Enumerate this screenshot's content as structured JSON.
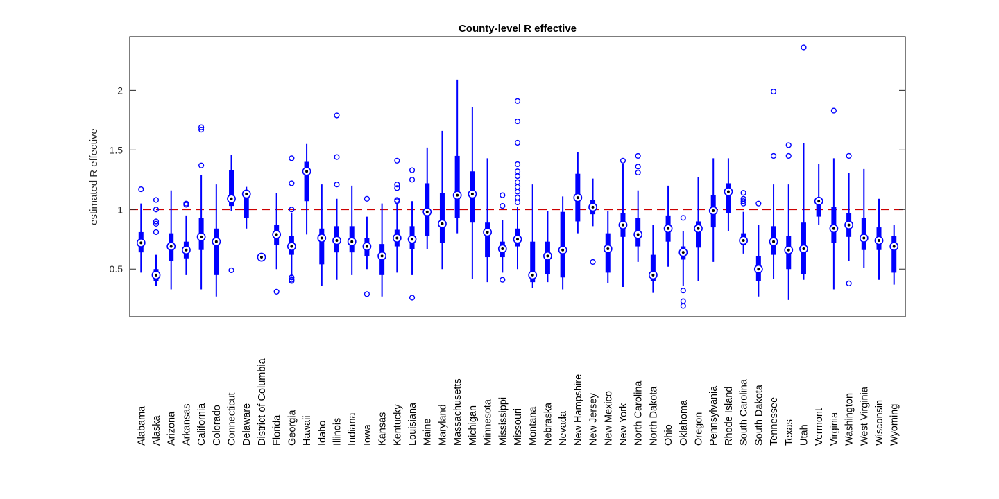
{
  "chart_data": {
    "type": "boxplot",
    "title": "County-level R effective",
    "xlabel": "",
    "ylabel": "estimated R effective",
    "ylim": [
      0.1,
      2.45
    ],
    "yticks": [
      0.5,
      1,
      1.5,
      2
    ],
    "ytick_labels": [
      "0.5",
      "1",
      "1.5",
      "2"
    ],
    "reference_line": {
      "y": 1,
      "style": "dashed",
      "color": "#cc0000"
    },
    "colors": {
      "box": "#0000ff",
      "outlier": "#0000ff",
      "median_marker": "#000000",
      "reference": "#cc0000",
      "axes": "#262626"
    },
    "grid": false,
    "categories": [
      "Alabama",
      "Alaska",
      "Arizona",
      "Arkansas",
      "California",
      "Colorado",
      "Connecticut",
      "Delaware",
      "District of Columbia",
      "Florida",
      "Georgia",
      "Hawaii",
      "Idaho",
      "Illinois",
      "Indiana",
      "Iowa",
      "Kansas",
      "Kentucky",
      "Louisiana",
      "Maine",
      "Maryland",
      "Massachusetts",
      "Michigan",
      "Minnesota",
      "Mississippi",
      "Missouri",
      "Montana",
      "Nebraska",
      "Nevada",
      "New Hampshire",
      "New Jersey",
      "New Mexico",
      "New York",
      "North Carolina",
      "North Dakota",
      "Ohio",
      "Oklahoma",
      "Oregon",
      "Pennsylvania",
      "Rhode Island",
      "South Carolina",
      "South Dakota",
      "Tennessee",
      "Texas",
      "Utah",
      "Vermont",
      "Virginia",
      "Washington",
      "West Virginia",
      "Wisconsin",
      "Wyoming"
    ],
    "boxes": [
      {
        "whisker_low": 0.47,
        "q1": 0.64,
        "median": 0.72,
        "q3": 0.81,
        "whisker_high": 1.05,
        "outliers": [
          1.17
        ]
      },
      {
        "whisker_low": 0.36,
        "q1": 0.4,
        "median": 0.45,
        "q3": 0.5,
        "whisker_high": 0.62,
        "outliers": [
          0.81,
          0.88,
          0.9,
          1.0,
          1.08
        ]
      },
      {
        "whisker_low": 0.33,
        "q1": 0.57,
        "median": 0.69,
        "q3": 0.8,
        "whisker_high": 1.16,
        "outliers": []
      },
      {
        "whisker_low": 0.45,
        "q1": 0.59,
        "median": 0.66,
        "q3": 0.73,
        "whisker_high": 0.95,
        "outliers": [
          1.04,
          1.05
        ]
      },
      {
        "whisker_low": 0.33,
        "q1": 0.66,
        "median": 0.77,
        "q3": 0.93,
        "whisker_high": 1.29,
        "outliers": [
          1.37,
          1.67,
          1.69
        ]
      },
      {
        "whisker_low": 0.27,
        "q1": 0.45,
        "median": 0.73,
        "q3": 0.84,
        "whisker_high": 1.21,
        "outliers": []
      },
      {
        "whisker_low": 0.99,
        "q1": 1.03,
        "median": 1.09,
        "q3": 1.33,
        "whisker_high": 1.46,
        "outliers": [
          0.49
        ]
      },
      {
        "whisker_low": 0.84,
        "q1": 0.93,
        "median": 1.13,
        "q3": 1.16,
        "whisker_high": 1.19,
        "outliers": []
      },
      {
        "whisker_low": 0.6,
        "q1": 0.6,
        "median": 0.6,
        "q3": 0.6,
        "whisker_high": 0.6,
        "outliers": []
      },
      {
        "whisker_low": 0.5,
        "q1": 0.7,
        "median": 0.79,
        "q3": 0.87,
        "whisker_high": 1.14,
        "outliers": [
          0.31
        ]
      },
      {
        "whisker_low": 0.44,
        "q1": 0.62,
        "median": 0.69,
        "q3": 0.78,
        "whisker_high": 0.97,
        "outliers": [
          0.4,
          0.41,
          0.43,
          1.0,
          1.22,
          1.43
        ]
      },
      {
        "whisker_low": 0.79,
        "q1": 1.07,
        "median": 1.32,
        "q3": 1.4,
        "whisker_high": 1.55,
        "outliers": []
      },
      {
        "whisker_low": 0.36,
        "q1": 0.54,
        "median": 0.76,
        "q3": 0.84,
        "whisker_high": 1.21,
        "outliers": []
      },
      {
        "whisker_low": 0.41,
        "q1": 0.64,
        "median": 0.74,
        "q3": 0.86,
        "whisker_high": 1.09,
        "outliers": [
          1.21,
          1.44,
          1.79
        ]
      },
      {
        "whisker_low": 0.45,
        "q1": 0.64,
        "median": 0.73,
        "q3": 0.86,
        "whisker_high": 1.2,
        "outliers": []
      },
      {
        "whisker_low": 0.5,
        "q1": 0.61,
        "median": 0.69,
        "q3": 0.76,
        "whisker_high": 0.94,
        "outliers": [
          0.29,
          1.09
        ]
      },
      {
        "whisker_low": 0.27,
        "q1": 0.45,
        "median": 0.61,
        "q3": 0.71,
        "whisker_high": 1.05,
        "outliers": []
      },
      {
        "whisker_low": 0.47,
        "q1": 0.69,
        "median": 0.76,
        "q3": 0.83,
        "whisker_high": 1.05,
        "outliers": [
          1.07,
          1.08,
          1.18,
          1.21,
          1.41
        ]
      },
      {
        "whisker_low": 0.45,
        "q1": 0.67,
        "median": 0.75,
        "q3": 0.86,
        "whisker_high": 1.07,
        "outliers": [
          0.26,
          1.25,
          1.33
        ]
      },
      {
        "whisker_low": 0.67,
        "q1": 0.78,
        "median": 0.98,
        "q3": 1.22,
        "whisker_high": 1.52,
        "outliers": []
      },
      {
        "whisker_low": 0.5,
        "q1": 0.72,
        "median": 0.88,
        "q3": 1.14,
        "whisker_high": 1.66,
        "outliers": []
      },
      {
        "whisker_low": 0.8,
        "q1": 0.93,
        "median": 1.12,
        "q3": 1.45,
        "whisker_high": 2.09,
        "outliers": []
      },
      {
        "whisker_low": 0.42,
        "q1": 0.89,
        "median": 1.13,
        "q3": 1.32,
        "whisker_high": 1.86,
        "outliers": []
      },
      {
        "whisker_low": 0.39,
        "q1": 0.6,
        "median": 0.81,
        "q3": 0.89,
        "whisker_high": 1.43,
        "outliers": []
      },
      {
        "whisker_low": 0.47,
        "q1": 0.6,
        "median": 0.67,
        "q3": 0.73,
        "whisker_high": 0.91,
        "outliers": [
          0.41,
          1.03,
          1.12
        ]
      },
      {
        "whisker_low": 0.5,
        "q1": 0.69,
        "median": 0.75,
        "q3": 0.84,
        "whisker_high": 1.02,
        "outliers": [
          1.06,
          1.1,
          1.15,
          1.19,
          1.23,
          1.28,
          1.32,
          1.38,
          1.56,
          1.74,
          1.91
        ]
      },
      {
        "whisker_low": 0.34,
        "q1": 0.39,
        "median": 0.45,
        "q3": 0.73,
        "whisker_high": 1.21,
        "outliers": []
      },
      {
        "whisker_low": 0.39,
        "q1": 0.46,
        "median": 0.61,
        "q3": 0.73,
        "whisker_high": 0.99,
        "outliers": []
      },
      {
        "whisker_low": 0.33,
        "q1": 0.43,
        "median": 0.66,
        "q3": 0.98,
        "whisker_high": 1.11,
        "outliers": []
      },
      {
        "whisker_low": 0.8,
        "q1": 0.9,
        "median": 1.1,
        "q3": 1.3,
        "whisker_high": 1.48,
        "outliers": []
      },
      {
        "whisker_low": 0.86,
        "q1": 0.96,
        "median": 1.02,
        "q3": 1.08,
        "whisker_high": 1.26,
        "outliers": [
          0.56
        ]
      },
      {
        "whisker_low": 0.38,
        "q1": 0.47,
        "median": 0.67,
        "q3": 0.8,
        "whisker_high": 0.99,
        "outliers": []
      },
      {
        "whisker_low": 0.35,
        "q1": 0.77,
        "median": 0.87,
        "q3": 0.97,
        "whisker_high": 1.38,
        "outliers": [
          1.41
        ]
      },
      {
        "whisker_low": 0.56,
        "q1": 0.69,
        "median": 0.79,
        "q3": 0.93,
        "whisker_high": 1.16,
        "outliers": [
          1.31,
          1.36,
          1.45
        ]
      },
      {
        "whisker_low": 0.3,
        "q1": 0.4,
        "median": 0.45,
        "q3": 0.62,
        "whisker_high": 0.87,
        "outliers": []
      },
      {
        "whisker_low": 0.52,
        "q1": 0.73,
        "median": 0.84,
        "q3": 0.95,
        "whisker_high": 1.2,
        "outliers": []
      },
      {
        "whisker_low": 0.36,
        "q1": 0.58,
        "median": 0.64,
        "q3": 0.69,
        "whisker_high": 0.82,
        "outliers": [
          0.19,
          0.23,
          0.32,
          0.93
        ]
      },
      {
        "whisker_low": 0.4,
        "q1": 0.68,
        "median": 0.84,
        "q3": 0.9,
        "whisker_high": 1.27,
        "outliers": []
      },
      {
        "whisker_low": 0.56,
        "q1": 0.85,
        "median": 0.99,
        "q3": 1.12,
        "whisker_high": 1.43,
        "outliers": []
      },
      {
        "whisker_low": 0.82,
        "q1": 0.97,
        "median": 1.15,
        "q3": 1.22,
        "whisker_high": 1.43,
        "outliers": []
      },
      {
        "whisker_low": 0.63,
        "q1": 0.7,
        "median": 0.74,
        "q3": 0.8,
        "whisker_high": 0.98,
        "outliers": [
          1.05,
          1.07,
          1.09,
          1.14
        ]
      },
      {
        "whisker_low": 0.27,
        "q1": 0.4,
        "median": 0.5,
        "q3": 0.61,
        "whisker_high": 0.87,
        "outliers": [
          1.05
        ]
      },
      {
        "whisker_low": 0.42,
        "q1": 0.62,
        "median": 0.73,
        "q3": 0.86,
        "whisker_high": 1.21,
        "outliers": [
          1.45,
          1.99
        ]
      },
      {
        "whisker_low": 0.24,
        "q1": 0.5,
        "median": 0.66,
        "q3": 0.78,
        "whisker_high": 1.21,
        "outliers": [
          1.45,
          1.54
        ]
      },
      {
        "whisker_low": 0.41,
        "q1": 0.46,
        "median": 0.67,
        "q3": 0.89,
        "whisker_high": 1.56,
        "outliers": [
          2.36
        ]
      },
      {
        "whisker_low": 0.87,
        "q1": 0.94,
        "median": 1.07,
        "q3": 1.1,
        "whisker_high": 1.38,
        "outliers": []
      },
      {
        "whisker_low": 0.33,
        "q1": 0.72,
        "median": 0.84,
        "q3": 1.02,
        "whisker_high": 1.43,
        "outliers": [
          1.83
        ]
      },
      {
        "whisker_low": 0.57,
        "q1": 0.77,
        "median": 0.87,
        "q3": 0.97,
        "whisker_high": 1.31,
        "outliers": [
          0.38,
          1.45
        ]
      },
      {
        "whisker_low": 0.51,
        "q1": 0.66,
        "median": 0.76,
        "q3": 0.93,
        "whisker_high": 1.34,
        "outliers": []
      },
      {
        "whisker_low": 0.41,
        "q1": 0.66,
        "median": 0.74,
        "q3": 0.85,
        "whisker_high": 1.09,
        "outliers": []
      },
      {
        "whisker_low": 0.37,
        "q1": 0.47,
        "median": 0.69,
        "q3": 0.78,
        "whisker_high": 0.87,
        "outliers": []
      }
    ]
  }
}
